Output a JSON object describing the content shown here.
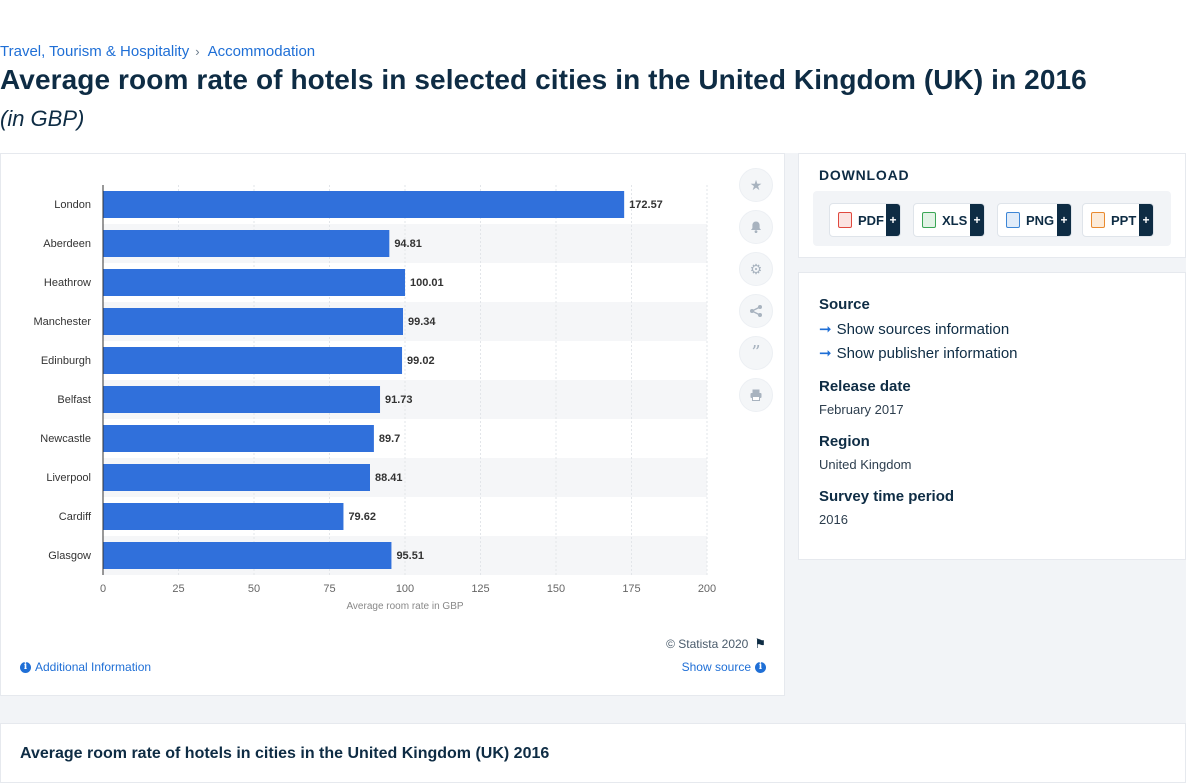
{
  "breadcrumb": {
    "items": [
      "Travel, Tourism & Hospitality",
      "Accommodation"
    ],
    "separator": "›"
  },
  "page": {
    "title": "Average room rate of hotels in selected cities in the United Kingdom (UK) in 2016",
    "subtitle": "(in GBP)"
  },
  "chart_data": {
    "type": "bar",
    "orientation": "horizontal",
    "categories": [
      "London",
      "Aberdeen",
      "Heathrow",
      "Manchester",
      "Edinburgh",
      "Belfast",
      "Newcastle",
      "Liverpool",
      "Cardiff",
      "Glasgow"
    ],
    "values": [
      172.57,
      94.81,
      100.01,
      99.34,
      99.02,
      91.73,
      89.7,
      88.41,
      79.62,
      95.51
    ],
    "value_labels": [
      "172.57",
      "94.81",
      "100.01",
      "99.34",
      "99.02",
      "91.73",
      "89.7",
      "88.41",
      "79.62",
      "95.51"
    ],
    "xlabel": "Average room rate in GBP",
    "xlim": [
      0,
      200
    ],
    "xticks": [
      0,
      25,
      50,
      75,
      100,
      125,
      150,
      175,
      200
    ],
    "bar_color": "#3070db",
    "grid": true
  },
  "chart_footer": {
    "copyright": "© Statista 2020",
    "additional_info": "Additional Information",
    "show_source": "Show source"
  },
  "tools": [
    "star-icon",
    "bell-icon",
    "gear-icon",
    "share-icon",
    "quote-icon",
    "print-icon"
  ],
  "download": {
    "title": "DOWNLOAD",
    "buttons": [
      {
        "label": "PDF",
        "color": "#e0483e"
      },
      {
        "label": "XLS",
        "color": "#3aa655"
      },
      {
        "label": "PNG",
        "color": "#3d86d6"
      },
      {
        "label": "PPT",
        "color": "#e98a2f"
      }
    ],
    "plus": "+"
  },
  "meta": {
    "source_heading": "Source",
    "show_sources": "Show sources information",
    "show_publisher": "Show publisher information",
    "release_heading": "Release date",
    "release_value": "February 2017",
    "region_heading": "Region",
    "region_value": "United Kingdom",
    "survey_heading": "Survey time period",
    "survey_value": "2016"
  },
  "bottom": {
    "title": "Average room rate of hotels in cities in the United Kingdom (UK) 2016"
  }
}
